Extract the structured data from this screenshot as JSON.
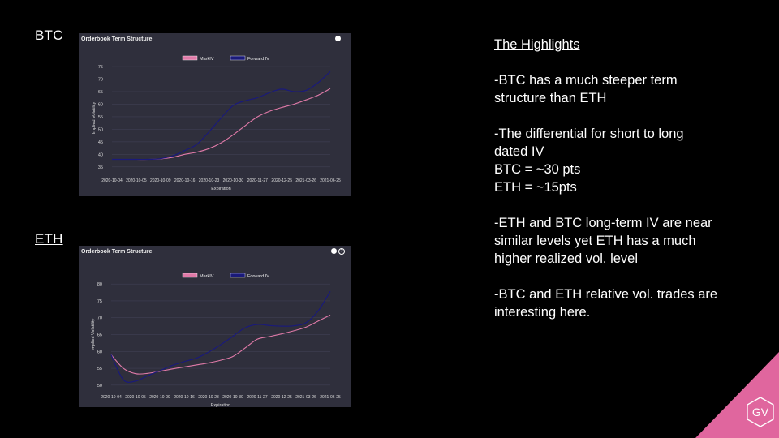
{
  "colors": {
    "background": "#000000",
    "panel": "#2f2f3c",
    "mark_iv": "#e07aa8",
    "forward_iv": "#1a1a7a",
    "accent": "#e0669e"
  },
  "btc_label": "BTC",
  "eth_label": "ETH",
  "highlights": {
    "heading": "The Highlights",
    "lines": [
      "-BTC has a much steeper term",
      "structure than ETH",
      "",
      "-The differential  for short to long",
      "dated IV",
      "BTC = ~30 pts",
      "ETH = ~15pts",
      "",
      "-ETH and BTC long-term IV are near",
      "similar levels yet ETH has a much",
      "higher realized vol. level",
      "",
      "-BTC and ETH relative vol. trades are",
      "interesting here."
    ]
  },
  "logo": {
    "text": "GV"
  },
  "chart_data": [
    {
      "type": "line",
      "title": "Orderbook Term Structure",
      "xlabel": "Expiration",
      "ylabel": "Implied Volatility",
      "categories": [
        "2020-10-04",
        "2020-10-05",
        "2020-10-09",
        "2020-10-16",
        "2020-10-23",
        "2020-10-30",
        "2020-11-27",
        "2020-12-25",
        "2021-03-26",
        "2021-06-25"
      ],
      "x_index": [
        0,
        1,
        2,
        3,
        4,
        5,
        6,
        7,
        8,
        9
      ],
      "yticks": [
        35,
        40,
        45,
        50,
        55,
        60,
        65,
        70,
        75
      ],
      "ylim": [
        33,
        76
      ],
      "legend_position": "top-center",
      "series": [
        {
          "name": "MarkIV",
          "color": "#e07aa8",
          "x": [
            0,
            0.5,
            1,
            1.5,
            2,
            2.5,
            3,
            3.5,
            4,
            4.5,
            5,
            5.5,
            6,
            6.5,
            7,
            7.5,
            8,
            8.5,
            9
          ],
          "values": [
            38,
            38,
            38,
            38,
            38.2,
            38.8,
            40,
            40.9,
            42.3,
            44.6,
            47.8,
            51.5,
            55,
            57.2,
            58.7,
            60,
            61.7,
            63.6,
            66.2
          ]
        },
        {
          "name": "Forward IV",
          "color": "#1a1a7a",
          "x": [
            0,
            0.5,
            1,
            1.5,
            2,
            2.5,
            3,
            3.5,
            4,
            4.5,
            5,
            5.5,
            6,
            6.5,
            7,
            7.5,
            8,
            8.5,
            9
          ],
          "values": [
            38,
            38,
            38,
            38,
            38.3,
            39.4,
            41.5,
            44,
            49,
            54.5,
            59.5,
            61.4,
            62.6,
            64.6,
            66,
            65,
            65.5,
            68.6,
            73
          ]
        }
      ]
    },
    {
      "type": "line",
      "title": "Orderbook Term Structure",
      "xlabel": "Expiration",
      "ylabel": "Implied Volatility",
      "categories": [
        "2020-10-04",
        "2020-10-05",
        "2020-10-09",
        "2020-10-16",
        "2020-10-23",
        "2020-10-30",
        "2020-11-27",
        "2020-12-25",
        "2021-03-26",
        "2021-06-25"
      ],
      "x_index": [
        0,
        1,
        2,
        3,
        4,
        5,
        6,
        7,
        8,
        9
      ],
      "yticks": [
        50,
        55,
        60,
        65,
        70,
        75,
        80
      ],
      "ylim": [
        49,
        81
      ],
      "legend_position": "top-center",
      "series": [
        {
          "name": "MarkIV",
          "color": "#e07aa8",
          "x": [
            0,
            0.5,
            1,
            1.5,
            2,
            2.5,
            3,
            3.5,
            4,
            4.5,
            5,
            5.5,
            6,
            6.5,
            7,
            7.5,
            8,
            8.5,
            9
          ],
          "values": [
            59,
            55,
            53.4,
            53.5,
            54.1,
            54.8,
            55.4,
            56,
            56.6,
            57.4,
            58.5,
            61,
            63.6,
            64.4,
            65.2,
            66.1,
            67.2,
            69,
            70.8
          ]
        },
        {
          "name": "Forward IV",
          "color": "#1a1a7a",
          "x": [
            0,
            0.5,
            1,
            1.5,
            2,
            2.5,
            3,
            3.5,
            4,
            4.5,
            5,
            5.5,
            6,
            6.5,
            7,
            7.5,
            8,
            8.5,
            9
          ],
          "values": [
            59,
            51.6,
            51.2,
            52.8,
            54.3,
            55.8,
            57,
            58,
            59.8,
            62,
            64.5,
            67,
            68,
            67.7,
            67.5,
            67.6,
            68.5,
            72,
            77.8
          ]
        }
      ]
    }
  ]
}
